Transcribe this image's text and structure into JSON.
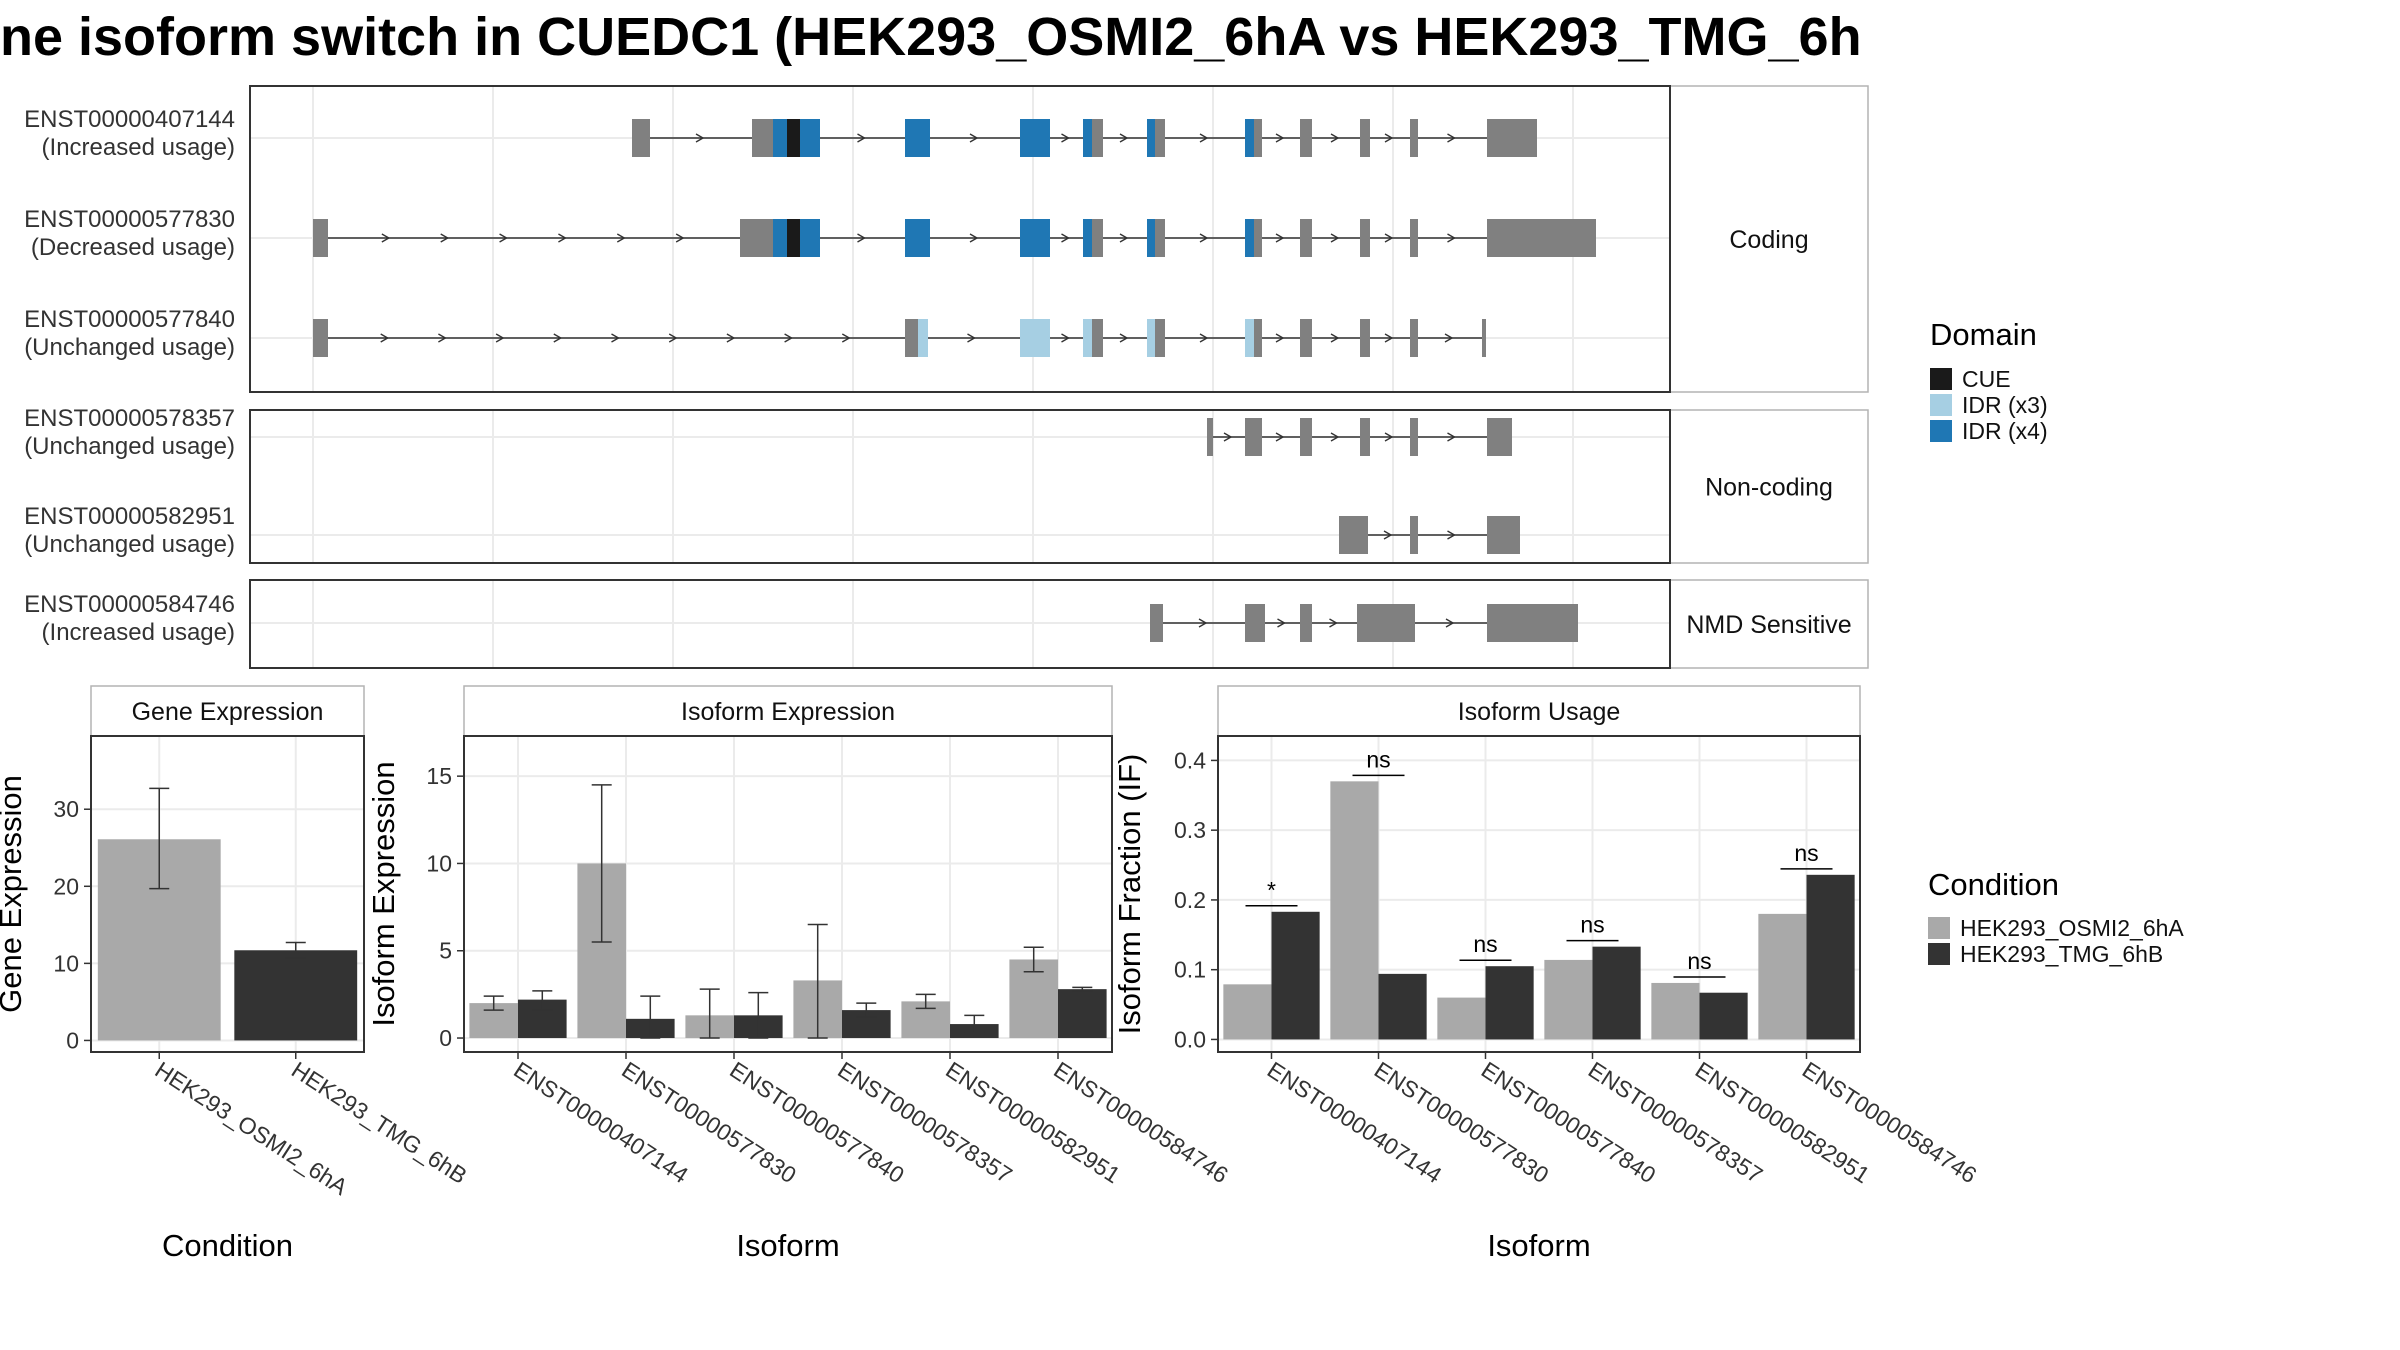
{
  "title": "ne isoform switch in CUEDC1 (HEK293_OSMI2_6hA vs HEK293_TMG_6h",
  "colors": {
    "exon": "#808080",
    "cue": "#1a1a1a",
    "idr_x3": "#a6cfe3",
    "idr_x4": "#1f77b4",
    "cond1": "#a9a9a9",
    "cond2": "#333333",
    "grid": "#ebebeb",
    "panel_border": "#333333"
  },
  "structure": {
    "groups": [
      {
        "label": "Coding",
        "transcripts": [
          {
            "id": "ENST00000407144",
            "usage": "(Increased usage)",
            "exons": [
              [
                632,
                650
              ],
              [
                752,
                775
              ],
              [
                775,
                820
              ],
              [
                905,
                930
              ],
              [
                1020,
                1050
              ],
              [
                1083,
                1103
              ],
              [
                1147,
                1165
              ],
              [
                1245,
                1262
              ],
              [
                1300,
                1312
              ],
              [
                1360,
                1370
              ],
              [
                1410,
                1418
              ],
              [
                1487,
                1537
              ]
            ],
            "domains": [
              {
                "type": "cue",
                "range": [
                  787,
                  800
                ]
              },
              {
                "type": "idr_x4",
                "range": [
                  773,
                  787
                ]
              },
              {
                "type": "idr_x4",
                "range": [
                  800,
                  820
                ]
              },
              {
                "type": "idr_x4",
                "range": [
                  905,
                  930
                ]
              },
              {
                "type": "idr_x4",
                "range": [
                  1020,
                  1050
                ]
              },
              {
                "type": "idr_x4",
                "range": [
                  1083,
                  1092
                ]
              },
              {
                "type": "idr_x4",
                "range": [
                  1147,
                  1155
                ]
              },
              {
                "type": "idr_x4",
                "range": [
                  1245,
                  1254
                ]
              }
            ]
          },
          {
            "id": "ENST00000577830",
            "usage": "(Decreased usage)",
            "exons": [
              [
                313,
                328
              ],
              [
                740,
                775
              ],
              [
                775,
                820
              ],
              [
                905,
                930
              ],
              [
                1020,
                1050
              ],
              [
                1083,
                1103
              ],
              [
                1147,
                1165
              ],
              [
                1245,
                1262
              ],
              [
                1300,
                1312
              ],
              [
                1360,
                1370
              ],
              [
                1410,
                1418
              ],
              [
                1487,
                1596
              ]
            ],
            "domains": [
              {
                "type": "cue",
                "range": [
                  787,
                  800
                ]
              },
              {
                "type": "idr_x4",
                "range": [
                  773,
                  787
                ]
              },
              {
                "type": "idr_x4",
                "range": [
                  800,
                  820
                ]
              },
              {
                "type": "idr_x4",
                "range": [
                  905,
                  930
                ]
              },
              {
                "type": "idr_x4",
                "range": [
                  1020,
                  1050
                ]
              },
              {
                "type": "idr_x4",
                "range": [
                  1083,
                  1092
                ]
              },
              {
                "type": "idr_x4",
                "range": [
                  1147,
                  1155
                ]
              },
              {
                "type": "idr_x4",
                "range": [
                  1245,
                  1254
                ]
              }
            ]
          },
          {
            "id": "ENST00000577840",
            "usage": "(Unchanged usage)",
            "exons": [
              [
                313,
                328
              ],
              [
                905,
                925
              ],
              [
                1020,
                1050
              ],
              [
                1083,
                1103
              ],
              [
                1147,
                1165
              ],
              [
                1245,
                1262
              ],
              [
                1300,
                1312
              ],
              [
                1360,
                1370
              ],
              [
                1410,
                1418
              ],
              [
                1482,
                1486
              ]
            ],
            "domains": [
              {
                "type": "idr_x3",
                "range": [
                  918,
                  928
                ]
              },
              {
                "type": "idr_x3",
                "range": [
                  1020,
                  1050
                ]
              },
              {
                "type": "idr_x3",
                "range": [
                  1083,
                  1092
                ]
              },
              {
                "type": "idr_x3",
                "range": [
                  1147,
                  1155
                ]
              },
              {
                "type": "idr_x3",
                "range": [
                  1245,
                  1254
                ]
              }
            ]
          }
        ]
      },
      {
        "label": "Non-coding",
        "transcripts": [
          {
            "id": "ENST00000578357",
            "usage": "(Unchanged usage)",
            "exons": [
              [
                1207,
                1213
              ],
              [
                1245,
                1262
              ],
              [
                1300,
                1312
              ],
              [
                1360,
                1370
              ],
              [
                1410,
                1418
              ],
              [
                1487,
                1512
              ]
            ],
            "domains": []
          },
          {
            "id": "ENST00000582951",
            "usage": "(Unchanged usage)",
            "exons": [
              [
                1339,
                1368
              ],
              [
                1410,
                1418
              ],
              [
                1487,
                1520
              ]
            ],
            "domains": []
          }
        ]
      },
      {
        "label": "NMD Sensitive",
        "transcripts": [
          {
            "id": "ENST00000584746",
            "usage": "(Increased usage)",
            "exons": [
              [
                1150,
                1163
              ],
              [
                1245,
                1262
              ],
              [
                1260,
                1265
              ],
              [
                1300,
                1312
              ],
              [
                1357,
                1372
              ],
              [
                1372,
                1415
              ],
              [
                1487,
                1578
              ]
            ],
            "domains": []
          }
        ]
      }
    ],
    "legend_title": "Domain",
    "legend": [
      {
        "label": "CUE",
        "color_key": "cue"
      },
      {
        "label": "IDR (x3)",
        "color_key": "idr_x3"
      },
      {
        "label": "IDR (x4)",
        "color_key": "idr_x4"
      }
    ]
  },
  "chart_data": [
    {
      "type": "bar",
      "title": "Gene Expression",
      "xlabel": "Condition",
      "ylabel": "Gene Expression",
      "categories": [
        "HEK293_OSMI2_6hA",
        "HEK293_TMG_6hB"
      ],
      "values": [
        26.1,
        11.7
      ],
      "error_low": [
        19.7,
        10.7
      ],
      "error_high": [
        32.7,
        12.7
      ],
      "ylim": [
        -1.5,
        39.5
      ],
      "yticks": [
        0,
        10,
        20,
        30
      ],
      "grid": true
    },
    {
      "type": "bar",
      "title": "Isoform Expression",
      "xlabel": "Isoform",
      "ylabel": "Isoform Expression",
      "categories": [
        "ENST00000407144",
        "ENST00000577830",
        "ENST00000577840",
        "ENST00000578357",
        "ENST00000582951",
        "ENST00000584746"
      ],
      "series": [
        {
          "name": "HEK293_OSMI2_6hA",
          "values": [
            2.0,
            10.0,
            1.3,
            3.3,
            2.1,
            4.5
          ],
          "error_low": [
            1.6,
            5.5,
            0.0,
            0.0,
            1.7,
            3.8
          ],
          "error_high": [
            2.4,
            14.5,
            2.8,
            6.5,
            2.5,
            5.2
          ]
        },
        {
          "name": "HEK293_TMG_6hB",
          "values": [
            2.2,
            1.1,
            1.3,
            1.6,
            0.8,
            2.8
          ],
          "error_low": [
            1.6,
            0.0,
            0.0,
            1.2,
            0.3,
            2.7
          ],
          "error_high": [
            2.7,
            2.4,
            2.6,
            2.0,
            1.3,
            2.9
          ]
        }
      ],
      "ylim": [
        -0.8,
        17.3
      ],
      "yticks": [
        0,
        5,
        10,
        15
      ],
      "grid": true
    },
    {
      "type": "bar",
      "title": "Isoform Usage",
      "xlabel": "Isoform",
      "ylabel": "Isoform Fraction (IF)",
      "categories": [
        "ENST00000407144",
        "ENST00000577830",
        "ENST00000577840",
        "ENST00000578357",
        "ENST00000582951",
        "ENST00000584746"
      ],
      "series": [
        {
          "name": "HEK293_OSMI2_6hA",
          "values": [
            0.079,
            0.37,
            0.06,
            0.114,
            0.081,
            0.18
          ]
        },
        {
          "name": "HEK293_TMG_6hB",
          "values": [
            0.183,
            0.094,
            0.105,
            0.133,
            0.067,
            0.236
          ]
        }
      ],
      "significance": [
        "*",
        "ns",
        "ns",
        "ns",
        "ns",
        "ns"
      ],
      "ylim": [
        -0.018,
        0.435
      ],
      "yticks": [
        0.0,
        0.1,
        0.2,
        0.3,
        0.4
      ],
      "ytick_labels": [
        "0.0",
        "0.1",
        "0.2",
        "0.3",
        "0.4"
      ],
      "grid": true
    }
  ],
  "condition_legend": {
    "title": "Condition",
    "items": [
      {
        "label": "HEK293_OSMI2_6hA",
        "color_key": "cond1"
      },
      {
        "label": "HEK293_TMG_6hB",
        "color_key": "cond2"
      }
    ]
  }
}
